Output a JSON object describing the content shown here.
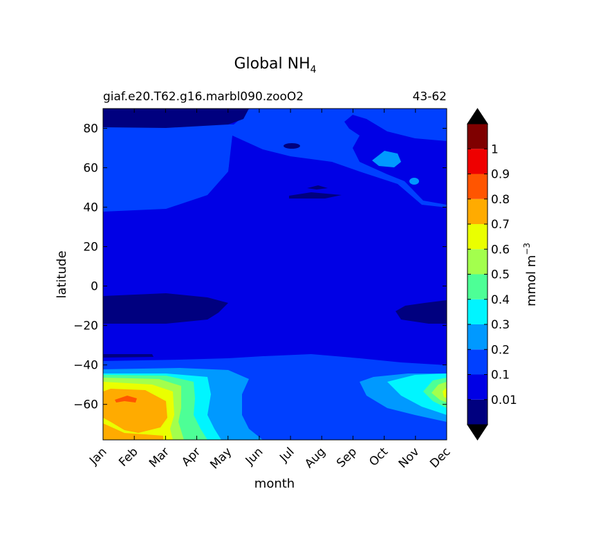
{
  "chart_data": {
    "type": "contour",
    "title": {
      "main": "Global NH",
      "subscript": "4"
    },
    "subtitle_left": "giaf.e20.T62.g16.marbl090.zooO2",
    "subtitle_right": "43-62",
    "xlabel": "month",
    "ylabel": "latitude",
    "x_ticks": [
      "Jan",
      "Feb",
      "Mar",
      "Apr",
      "May",
      "Jun",
      "Jul",
      "Aug",
      "Sep",
      "Oct",
      "Nov",
      "Dec"
    ],
    "y_ticks": [
      "80",
      "60",
      "40",
      "20",
      "0",
      "−20",
      "−40",
      "−60"
    ],
    "y_tick_values": [
      80,
      60,
      40,
      20,
      0,
      -20,
      -40,
      -60
    ],
    "ylim": [
      -78,
      90
    ],
    "colorbar": {
      "label": {
        "main": "mmol m",
        "superscript": "−3"
      },
      "tick_labels": [
        "0.01",
        "0.1",
        "0.2",
        "0.3",
        "0.4",
        "0.5",
        "0.6",
        "0.7",
        "0.8",
        "0.9",
        "1"
      ],
      "levels": [
        0.01,
        0.1,
        0.2,
        0.3,
        0.4,
        0.5,
        0.6,
        0.7,
        0.8,
        0.9,
        1.0,
        1.1
      ],
      "colors": [
        "#00007f",
        "#0000e5",
        "#0040ff",
        "#0099ff",
        "#00f5ff",
        "#4dff96",
        "#a3ff4d",
        "#eaff00",
        "#ffab00",
        "#ff5500",
        "#ef0000",
        "#7f0000"
      ],
      "extend": "both",
      "under_color": "#000000",
      "over_color": "#000000"
    },
    "background_level_color": "#0000e5"
  }
}
